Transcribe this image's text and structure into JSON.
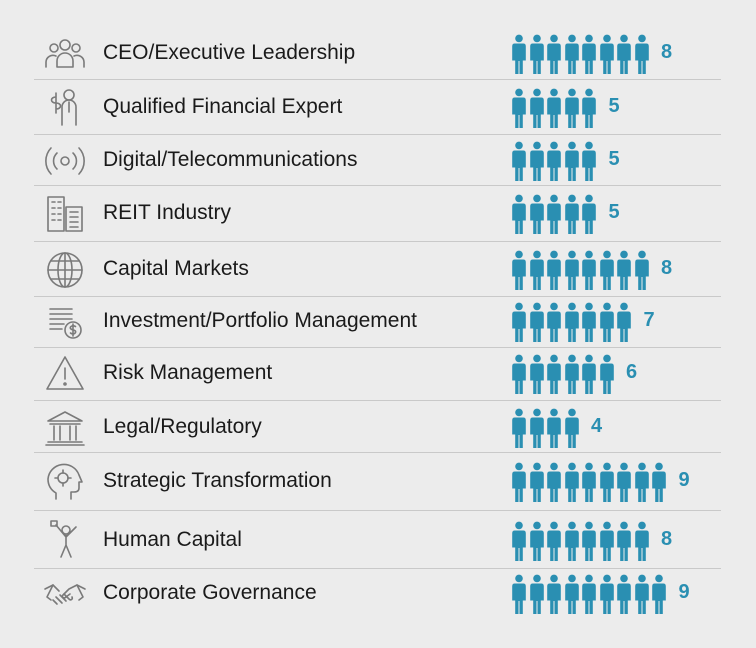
{
  "chart_data": {
    "type": "pictograph",
    "categories": [
      {
        "label": "CEO/Executive Leadership",
        "value": 8,
        "icon": "team-icon"
      },
      {
        "label": "Qualified Financial Expert",
        "value": 5,
        "icon": "financial-expert-icon"
      },
      {
        "label": "Digital/Telecommunications",
        "value": 5,
        "icon": "wireless-signal-icon"
      },
      {
        "label": "REIT Industry",
        "value": 5,
        "icon": "buildings-icon"
      },
      {
        "label": "Capital Markets",
        "value": 8,
        "icon": "globe-icon"
      },
      {
        "label": "Investment/Portfolio Management",
        "value": 7,
        "icon": "documents-dollar-icon"
      },
      {
        "label": "Risk Management",
        "value": 6,
        "icon": "warning-triangle-icon"
      },
      {
        "label": "Legal/Regulatory",
        "value": 4,
        "icon": "courthouse-icon"
      },
      {
        "label": "Strategic Transformation",
        "value": 9,
        "icon": "head-gears-icon"
      },
      {
        "label": "Human Capital",
        "value": 8,
        "icon": "person-raising-arms-icon"
      },
      {
        "label": "Corporate Governance",
        "value": 9,
        "icon": "handshake-icon"
      }
    ],
    "colors": {
      "pictogram": "#2a8fb2",
      "value_text": "#2a8fb2",
      "label_text": "#1a1a1a",
      "icon_stroke": "#7a7a7a",
      "divider": "#c9c9c9",
      "background": "#ececec"
    }
  }
}
